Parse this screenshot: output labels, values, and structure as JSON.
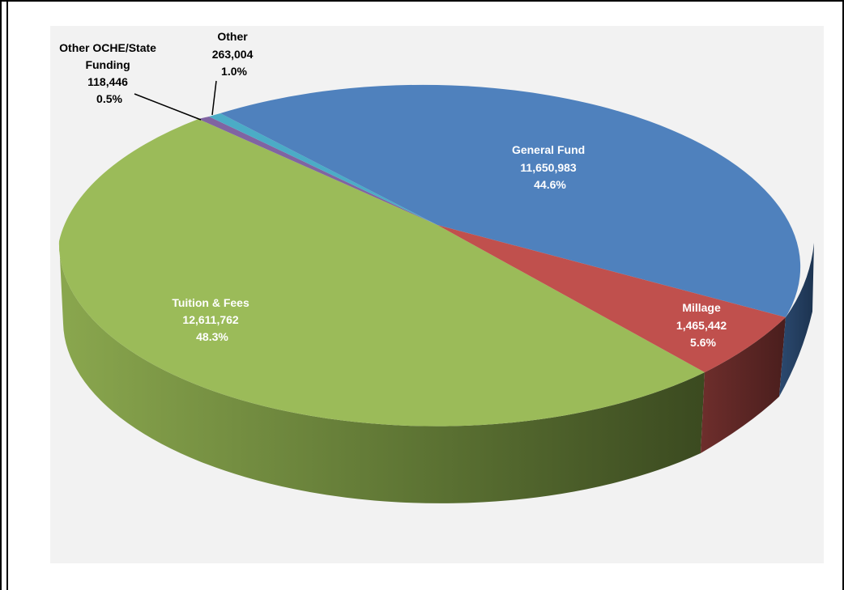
{
  "chart_data": {
    "type": "pie",
    "three_d": true,
    "title": "",
    "legend": "none",
    "colors": {
      "general_fund": "#4F81BD",
      "millage": "#C0504D",
      "tuition_fees": "#9BBB59",
      "other_oche": "#8064A2",
      "other": "#4BACC6"
    },
    "slices": [
      {
        "key": "general_fund",
        "label": "General Fund",
        "value_text": "11,650,983",
        "value": 11650983,
        "pct_text": "44.6%",
        "pct": 44.6
      },
      {
        "key": "millage",
        "label": "Millage",
        "value_text": "1,465,442",
        "value": 1465442,
        "pct_text": "5.6%",
        "pct": 5.6
      },
      {
        "key": "tuition_fees",
        "label": "Tuition & Fees",
        "value_text": "12,611,762",
        "value": 12611762,
        "pct_text": "48.3%",
        "pct": 48.3
      },
      {
        "key": "other_oche",
        "label_line1": "Other OCHE/State",
        "label_line2": "Funding",
        "value_text": "118,446",
        "value": 118446,
        "pct_text": "0.5%",
        "pct": 0.5
      },
      {
        "key": "other",
        "label": "Other",
        "value_text": "263,004",
        "value": 263004,
        "pct_text": "1.0%",
        "pct": 1.0
      }
    ]
  }
}
